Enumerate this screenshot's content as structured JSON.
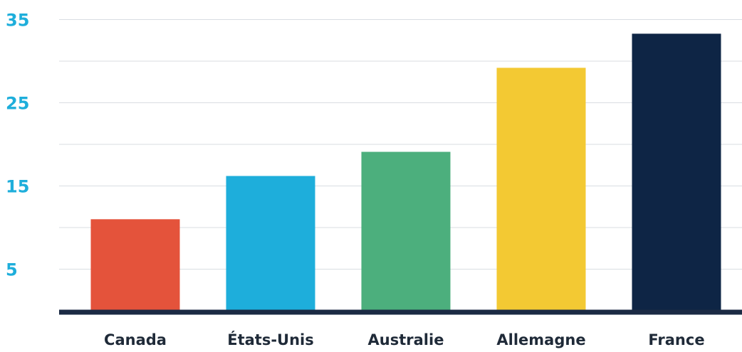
{
  "chart_data": {
    "type": "bar",
    "title": "",
    "xlabel": "",
    "ylabel": "",
    "categories": [
      "Canada",
      "États-Unis",
      "Australie",
      "Allemagne",
      "France"
    ],
    "values": [
      11,
      16.2,
      19.1,
      29.2,
      33.3
    ],
    "bar_colors": [
      "#e4533b",
      "#1eaedb",
      "#4caf7d",
      "#f3c933",
      "#0e2545"
    ],
    "ylim": [
      0,
      35
    ],
    "yticks": [
      5,
      15,
      25,
      35
    ],
    "ytick_labels": [
      "5",
      "15",
      "25",
      "35"
    ],
    "gridlines": [
      5,
      10,
      15,
      20,
      25,
      30,
      35
    ],
    "grid": true,
    "ytick_color": "#1eaedb",
    "baseline_color": "#1b2a44",
    "legend": "none"
  }
}
